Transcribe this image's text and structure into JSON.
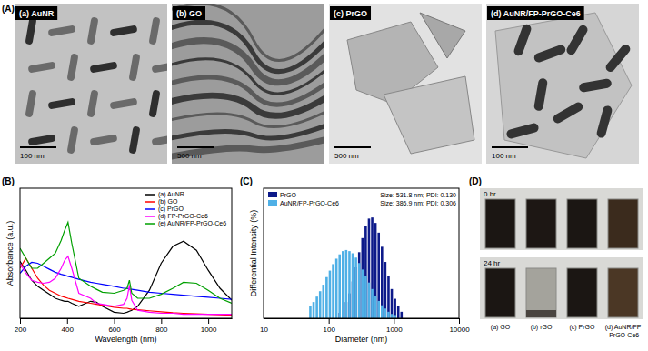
{
  "chart_data": [
    {
      "type": "line",
      "title": "(B)",
      "x_label": "Wavelength (nm)",
      "y_label": "Absorbance (a.u.)",
      "x": [
        200,
        225,
        250,
        275,
        300,
        325,
        350,
        375,
        390,
        404,
        420,
        450,
        500,
        525,
        550,
        600,
        640,
        655,
        665,
        675,
        700,
        750,
        800,
        850,
        895,
        950,
        1000,
        1050,
        1100
      ],
      "series": [
        {
          "name": "(a) AuNR",
          "color": "#000000",
          "values": [
            0.57,
            0.48,
            0.38,
            0.32,
            0.28,
            0.24,
            0.2,
            0.18,
            0.17,
            0.17,
            0.15,
            0.12,
            0.17,
            0.16,
            0.12,
            0.06,
            0.05,
            0.06,
            0.07,
            0.08,
            0.12,
            0.28,
            0.55,
            0.72,
            0.77,
            0.68,
            0.48,
            0.3,
            0.18
          ]
        },
        {
          "name": "(b) GO",
          "color": "#ff0000",
          "values": [
            0.5,
            0.6,
            0.5,
            0.4,
            0.33,
            0.28,
            0.25,
            0.22,
            0.21,
            0.2,
            0.19,
            0.17,
            0.15,
            0.14,
            0.13,
            0.11,
            0.1,
            0.1,
            0.095,
            0.09,
            0.085,
            0.075,
            0.065,
            0.055,
            0.05,
            0.045,
            0.04,
            0.035,
            0.03
          ]
        },
        {
          "name": "(c) PrGO",
          "color": "#0000ff",
          "values": [
            0.45,
            0.52,
            0.56,
            0.55,
            0.52,
            0.49,
            0.46,
            0.44,
            0.43,
            0.42,
            0.41,
            0.39,
            0.36,
            0.35,
            0.34,
            0.32,
            0.3,
            0.3,
            0.29,
            0.29,
            0.28,
            0.26,
            0.25,
            0.24,
            0.23,
            0.22,
            0.21,
            0.2,
            0.19
          ]
        },
        {
          "name": "(d) FP-PrGO-Ce6",
          "color": "#ff00ff",
          "values": [
            0.55,
            0.45,
            0.38,
            0.36,
            0.35,
            0.36,
            0.4,
            0.5,
            0.58,
            0.62,
            0.5,
            0.25,
            0.2,
            0.15,
            0.14,
            0.12,
            0.14,
            0.2,
            0.33,
            0.18,
            0.08,
            0.06,
            0.05,
            0.05,
            0.04,
            0.04,
            0.04,
            0.04,
            0.04
          ]
        },
        {
          "name": "(e) AuNR/FP-PrGO-Ce6",
          "color": "#00a000",
          "values": [
            0.7,
            0.6,
            0.5,
            0.5,
            0.55,
            0.6,
            0.65,
            0.78,
            0.88,
            0.96,
            0.75,
            0.4,
            0.32,
            0.29,
            0.26,
            0.25,
            0.28,
            0.3,
            0.38,
            0.25,
            0.2,
            0.2,
            0.24,
            0.3,
            0.36,
            0.35,
            0.28,
            0.2,
            0.15
          ]
        }
      ],
      "xlim": [
        200,
        1100
      ],
      "xticks": [
        200,
        400,
        600,
        800,
        1000
      ],
      "ylim": [
        0,
        1.3
      ],
      "tick_labels": "x",
      "legend": "upper right"
    },
    {
      "type": "histogram",
      "title": "(C)",
      "x_label": "Diameter (nm)",
      "y_label": "Differential Intensity (%)",
      "bins": [
        50.1,
        56.2,
        63.1,
        70.8,
        79.4,
        89.1,
        100,
        112.2,
        125.9,
        141.3,
        158.5,
        177.8,
        199.5,
        223.9,
        251.2,
        281.8,
        316.2,
        354.8,
        398.1,
        446.7,
        501.2,
        562.3,
        631,
        707.9,
        794.3,
        891.3,
        1000,
        1122,
        1259,
        1413
      ],
      "series": [
        {
          "name": "PrGO",
          "color": "#0d1a8a",
          "values": [
            0,
            0,
            0,
            0,
            0,
            0,
            0,
            0,
            0,
            0.5,
            0.9,
            1.5,
            2.3,
            3.4,
            4.7,
            6.1,
            7.4,
            8.5,
            9.2,
            9.3,
            8.8,
            7.9,
            6.6,
            5.2,
            3.9,
            2.7,
            1.8,
            1.1,
            0.6
          ]
        },
        {
          "name": "AuNR/FP-PrGO-Ce6",
          "color": "#4fb0e6",
          "values": [
            1.1,
            1.5,
            2.0,
            2.5,
            3.1,
            3.8,
            4.4,
            5.0,
            5.5,
            5.9,
            6.2,
            6.3,
            6.2,
            6.0,
            5.6,
            5.1,
            4.5,
            3.9,
            3.3,
            2.7,
            2.1,
            1.6,
            1.2,
            0.9,
            0.6,
            0.4,
            0.3,
            0,
            0
          ]
        }
      ],
      "annotations": [
        "Size: 531.8 nm; PDI: 0.130",
        "Size: 386.9 nm; PDI: 0.306"
      ],
      "xlim": [
        10,
        10000
      ],
      "xticks": [
        10,
        100,
        1000,
        10000
      ],
      "log": "x",
      "ylim": [
        0,
        12
      ],
      "tick_labels": "x",
      "legend": "upper left"
    }
  ],
  "figure": {
    "panel_A": {
      "label": "(A)",
      "images": [
        {
          "label": "(a) AuNR",
          "scale_bar": "100 nm"
        },
        {
          "label": "(b) GO",
          "scale_bar": "500 nm"
        },
        {
          "label": "(c) PrGO",
          "scale_bar": "500 nm"
        },
        {
          "label": "(d) AuNR/FP-PrGO-Ce6",
          "scale_bar": "100 nm"
        }
      ]
    },
    "panel_D": {
      "label": "(D)",
      "rows": [
        "0 hr",
        "24 hr"
      ],
      "samples": [
        [
          "(a) GO"
        ],
        [
          "(b) rGO"
        ],
        [
          "(c) PrGO"
        ],
        [
          "(d) AuNR/FP",
          "-PrGO-Ce6"
        ]
      ]
    }
  }
}
